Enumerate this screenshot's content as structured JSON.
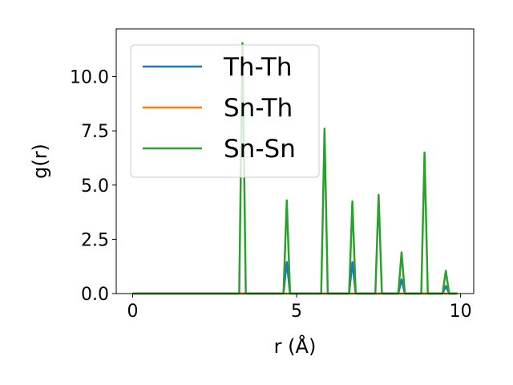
{
  "chart_data": {
    "type": "line",
    "title": "",
    "xlabel": "r (Å)",
    "ylabel": "g(r)",
    "xlim": [
      -0.5,
      10.4
    ],
    "ylim": [
      0,
      12.2
    ],
    "xticks": [
      0,
      5,
      10
    ],
    "xtick_labels": [
      "0",
      "5",
      "10"
    ],
    "yticks": [
      0,
      2.5,
      5,
      7.5,
      10
    ],
    "ytick_labels": [
      "0.0",
      "2.5",
      "5.0",
      "7.5",
      "10.0"
    ],
    "grid": false,
    "legend_position": "upper-left",
    "series": [
      {
        "name": "Th-Th",
        "color": "#1f77b4",
        "x": [
          0,
          4.6,
          4.7,
          4.8,
          6.6,
          6.7,
          6.8,
          8.1,
          8.2,
          8.3,
          9.45,
          9.55,
          9.65,
          9.9
        ],
        "y": [
          0,
          0,
          1.45,
          0,
          0,
          1.45,
          0,
          0,
          0.65,
          0,
          0,
          0.35,
          0,
          0
        ]
      },
      {
        "name": "Sn-Th",
        "color": "#ff7f0e",
        "x": [
          0,
          9.9
        ],
        "y": [
          0,
          0
        ]
      },
      {
        "name": "Sn-Sn",
        "color": "#2ca02c",
        "x": [
          0,
          3.25,
          3.35,
          3.45,
          4.6,
          4.7,
          4.8,
          5.75,
          5.85,
          5.95,
          6.6,
          6.7,
          6.8,
          7.4,
          7.5,
          7.6,
          8.1,
          8.2,
          8.3,
          8.8,
          8.9,
          9.0,
          9.45,
          9.55,
          9.65,
          9.9
        ],
        "y": [
          0,
          0,
          11.55,
          0,
          0,
          4.3,
          0,
          0,
          7.6,
          0,
          0,
          4.25,
          0,
          0,
          4.55,
          0,
          0,
          1.9,
          0,
          0,
          6.5,
          0,
          0,
          1.05,
          0,
          0
        ]
      }
    ]
  }
}
